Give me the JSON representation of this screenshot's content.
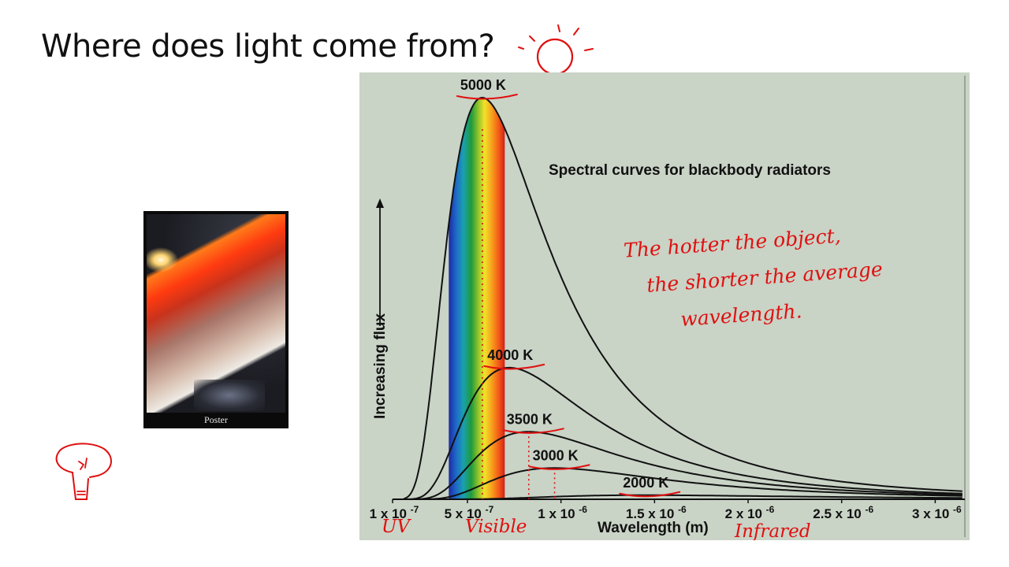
{
  "slide": {
    "title": "Where does light come from?",
    "photo_caption": "Poster"
  },
  "annotations": {
    "note_lines": [
      "The hotter the object,",
      "the shorter the average",
      "wavelength."
    ],
    "uv_label": "UV",
    "visible_label": "Visible",
    "infrared_label": "Infrared",
    "ink_color": "#e01010"
  },
  "chart_data": {
    "type": "line",
    "title": "Spectral curves for blackbody radiators",
    "xlabel": "Wavelength (m)",
    "ylabel": "Increasing flux",
    "xlim": [
      1e-07,
      3.15e-06
    ],
    "x_ticks": [
      {
        "value": 1e-07,
        "label": "1 x 10",
        "exp": "-7"
      },
      {
        "value": 5e-07,
        "label": "5 x 10",
        "exp": "-7"
      },
      {
        "value": 1e-06,
        "label": "1 x 10",
        "exp": "-6"
      },
      {
        "value": 1.5e-06,
        "label": "1.5 x 10",
        "exp": "-6"
      },
      {
        "value": 2e-06,
        "label": "2 x 10",
        "exp": "-6"
      },
      {
        "value": 2.5e-06,
        "label": "2.5 x 10",
        "exp": "-6"
      },
      {
        "value": 3e-06,
        "label": "3 x 10",
        "exp": "-6"
      }
    ],
    "visible_band": [
      4e-07,
      7e-07
    ],
    "series": [
      {
        "name": "5000 K",
        "temperature": 5000
      },
      {
        "name": "4000 K",
        "temperature": 4000
      },
      {
        "name": "3500 K",
        "temperature": 3500
      },
      {
        "name": "3000 K",
        "temperature": 3000
      },
      {
        "name": "2000 K",
        "temperature": 2000
      }
    ],
    "grid": false,
    "background": "#c9d3c6"
  }
}
